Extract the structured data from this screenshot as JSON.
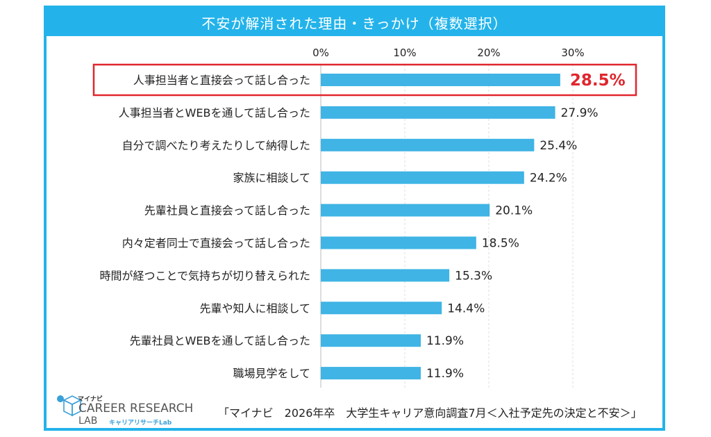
{
  "logo": {
    "brand": "マイナビ",
    "line1": "CAREER RESEARCH",
    "line2": "LAB",
    "sub": "キャリアリサーチLab"
  },
  "source": "「マイナビ　2026年卒　大学生キャリア意向調査7月＜入社予定先の決定と不安＞」",
  "colors": {
    "bar": "#3fb4e5",
    "frame": "#23b3ea",
    "highlight": "#e0262d"
  },
  "chart_data": {
    "type": "bar",
    "orientation": "horizontal",
    "title": "不安が解消された理由・きっかけ（複数選択）",
    "xlim": [
      0,
      30
    ],
    "ticks": [
      0,
      10,
      20,
      30
    ],
    "tick_labels": [
      "0%",
      "10%",
      "20%",
      "30%"
    ],
    "grid": true,
    "highlight_index": 0,
    "categories": [
      "人事担当者と直接会って話し合った",
      "人事担当者とWEBを通して話し合った",
      "自分で調べたり考えたりして納得した",
      "家族に相談して",
      "先輩社員と直接会って話し合った",
      "内々定者同士で直接会って話し合った",
      "時間が経つことで気持ちが切り替えられた",
      "先輩や知人に相談して",
      "先輩社員とWEBを通して話し合った",
      "職場見学をして"
    ],
    "values": [
      28.5,
      27.9,
      25.4,
      24.2,
      20.1,
      18.5,
      15.3,
      14.4,
      11.9,
      11.9
    ],
    "value_labels": [
      "28.5%",
      "27.9%",
      "25.4%",
      "24.2%",
      "20.1%",
      "18.5%",
      "15.3%",
      "14.4%",
      "11.9%",
      "11.9%"
    ]
  }
}
